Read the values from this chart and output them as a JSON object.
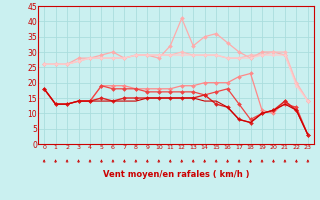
{
  "x": [
    0,
    1,
    2,
    3,
    4,
    5,
    6,
    7,
    8,
    9,
    10,
    11,
    12,
    13,
    14,
    15,
    16,
    17,
    18,
    19,
    20,
    21,
    22,
    23
  ],
  "bg_color": "#caf0f0",
  "grid_color": "#aadddd",
  "xlabel": "Vent moyen/en rafales ( km/h )",
  "xlabel_color": "#cc0000",
  "tick_color": "#cc0000",
  "ylim": [
    0,
    45
  ],
  "yticks": [
    0,
    5,
    10,
    15,
    20,
    25,
    30,
    35,
    40,
    45
  ],
  "series": [
    {
      "color": "#ffaaaa",
      "linewidth": 0.9,
      "marker": "D",
      "ms": 2.0,
      "values": [
        26,
        26,
        26,
        28,
        28,
        29,
        30,
        28,
        29,
        29,
        28,
        32,
        41,
        32,
        35,
        36,
        33,
        30,
        28,
        30,
        30,
        29,
        20,
        14
      ]
    },
    {
      "color": "#ffbbbb",
      "linewidth": 0.9,
      "marker": "D",
      "ms": 2.0,
      "values": [
        26,
        26,
        26,
        27,
        28,
        28,
        28,
        28,
        29,
        29,
        29,
        29,
        30,
        29,
        29,
        29,
        28,
        28,
        29,
        29,
        30,
        30,
        20,
        14
      ]
    },
    {
      "color": "#ffcccc",
      "linewidth": 0.9,
      "marker": "D",
      "ms": 1.5,
      "values": [
        26,
        26,
        26,
        27,
        28,
        28,
        28,
        28,
        29,
        29,
        29,
        29,
        29,
        29,
        29,
        29,
        28,
        28,
        28,
        29,
        29,
        29,
        19,
        14
      ]
    },
    {
      "color": "#ff8888",
      "linewidth": 0.9,
      "marker": "D",
      "ms": 2.0,
      "values": [
        18,
        13,
        13,
        14,
        14,
        19,
        19,
        19,
        18,
        18,
        18,
        18,
        19,
        19,
        20,
        20,
        20,
        22,
        23,
        11,
        10,
        14,
        11,
        3
      ]
    },
    {
      "color": "#ee4444",
      "linewidth": 0.9,
      "marker": "D",
      "ms": 2.0,
      "values": [
        18,
        13,
        13,
        14,
        14,
        19,
        18,
        18,
        18,
        17,
        17,
        17,
        17,
        17,
        16,
        17,
        18,
        13,
        8,
        10,
        11,
        13,
        12,
        3
      ]
    },
    {
      "color": "#dd2222",
      "linewidth": 1.0,
      "marker": "D",
      "ms": 2.0,
      "values": [
        18,
        13,
        13,
        14,
        14,
        15,
        14,
        15,
        15,
        15,
        15,
        15,
        15,
        15,
        16,
        13,
        12,
        8,
        7,
        10,
        11,
        14,
        11,
        3
      ]
    },
    {
      "color": "#cc0000",
      "linewidth": 0.8,
      "marker": null,
      "ms": 0,
      "values": [
        18,
        13,
        13,
        14,
        14,
        14,
        14,
        14,
        14,
        15,
        15,
        15,
        15,
        15,
        14,
        14,
        12,
        8,
        7,
        10,
        11,
        13,
        11,
        3
      ]
    }
  ],
  "arrow_color": "#cc0000",
  "figsize": [
    3.2,
    2.0
  ],
  "dpi": 100
}
